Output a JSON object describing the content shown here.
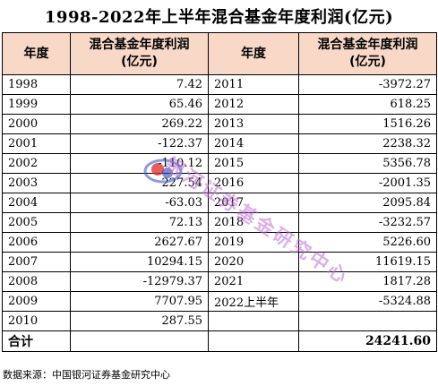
{
  "title": "1998-2022年上半年混合基金年度利润(亿元)",
  "headers": {
    "year_left": "年度",
    "profit_left": "混合基金年度利润\n(亿元)",
    "year_right": "年度",
    "profit_right": "混合基金年度利润\n(亿元)"
  },
  "rows": [
    {
      "year_l": "1998",
      "val_l": "7.42",
      "year_r": "2011",
      "val_r": "-3972.27"
    },
    {
      "year_l": "1999",
      "val_l": "65.46",
      "year_r": "2012",
      "val_r": "618.25"
    },
    {
      "year_l": "2000",
      "val_l": "269.22",
      "year_r": "2013",
      "val_r": "1516.26"
    },
    {
      "year_l": "2001",
      "val_l": "-122.37",
      "year_r": "2014",
      "val_r": "2238.32"
    },
    {
      "year_l": "2002",
      "val_l": "-110.12",
      "year_r": "2015",
      "val_r": "5356.78"
    },
    {
      "year_l": "2003",
      "val_l": "227.54",
      "year_r": "2016",
      "val_r": "-2001.35"
    },
    {
      "year_l": "2004",
      "val_l": "-63.03",
      "year_r": "2017",
      "val_r": "2095.84"
    },
    {
      "year_l": "2005",
      "val_l": "72.13",
      "year_r": "2018",
      "val_r": "-3232.57"
    },
    {
      "year_l": "2006",
      "val_l": "2627.67",
      "year_r": "2019",
      "val_r": "5226.60"
    },
    {
      "year_l": "2007",
      "val_l": "10294.15",
      "year_r": "2020",
      "val_r": "11619.15"
    },
    {
      "year_l": "2008",
      "val_l": "-12979.37",
      "year_r": "2021",
      "val_r": "1817.28"
    },
    {
      "year_l": "2009",
      "val_l": "7707.95",
      "year_r": "2022上半年",
      "val_r": "-5324.88"
    },
    {
      "year_l": "2010",
      "val_l": "287.55",
      "year_r": "",
      "val_r": ""
    }
  ],
  "total": {
    "label": "合计",
    "value": "24241.60"
  },
  "source": "数据来源：中国银河证券基金研究中心",
  "watermark": "银河证券基金研究中心",
  "colors": {
    "header_bg": "#f8d9c8",
    "watermark": "#be6ed2"
  }
}
